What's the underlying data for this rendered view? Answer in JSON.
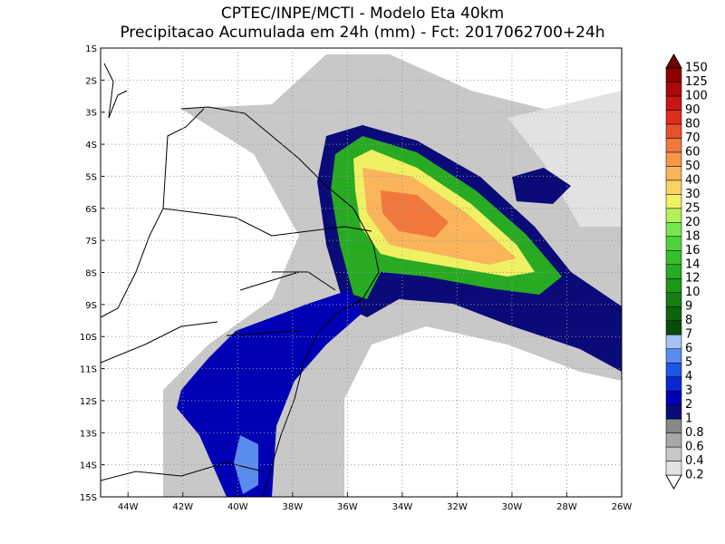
{
  "header": {
    "title": [
      "CPTEC/INPE/MCTI - Modelo Eta 40km",
      "Precipitacao Acumulada em 24h (mm) - Fct: 2017062700+24h"
    ]
  },
  "map": {
    "lat_labels": [
      "1S",
      "2S",
      "3S",
      "4S",
      "5S",
      "6S",
      "7S",
      "8S",
      "9S",
      "10S",
      "11S",
      "12S",
      "13S",
      "14S",
      "15S"
    ],
    "lon_labels": [
      "44W",
      "42W",
      "40W",
      "38W",
      "36W",
      "34W",
      "32W",
      "30W",
      "28W",
      "26W"
    ]
  },
  "colorbar": {
    "labels": [
      "0.2",
      "0.4",
      "0.6",
      "0.8",
      "1",
      "2",
      "3",
      "4",
      "5",
      "6",
      "7",
      "8",
      "9",
      "10",
      "12",
      "14",
      "16",
      "18",
      "20",
      "25",
      "30",
      "40",
      "50",
      "60",
      "70",
      "80",
      "90",
      "100",
      "125",
      "150"
    ],
    "colors": [
      "#ffffff",
      "#e2e2e2",
      "#c8c8c8",
      "#a8a8a8",
      "#888888",
      "#0a0a78",
      "#0000b4",
      "#0a28d2",
      "#1e55e6",
      "#5a8ced",
      "#a5c3f5",
      "#0a4b0a",
      "#0f640f",
      "#147d14",
      "#1e9619",
      "#28aa23",
      "#37be2d",
      "#50d23c",
      "#78e650",
      "#b4f05a",
      "#f0f064",
      "#fad264",
      "#fab45a",
      "#f5964b",
      "#f0783c",
      "#e6502d",
      "#dc2d1e",
      "#c81414",
      "#aa0a0a",
      "#8c0000",
      "#780000"
    ]
  }
}
